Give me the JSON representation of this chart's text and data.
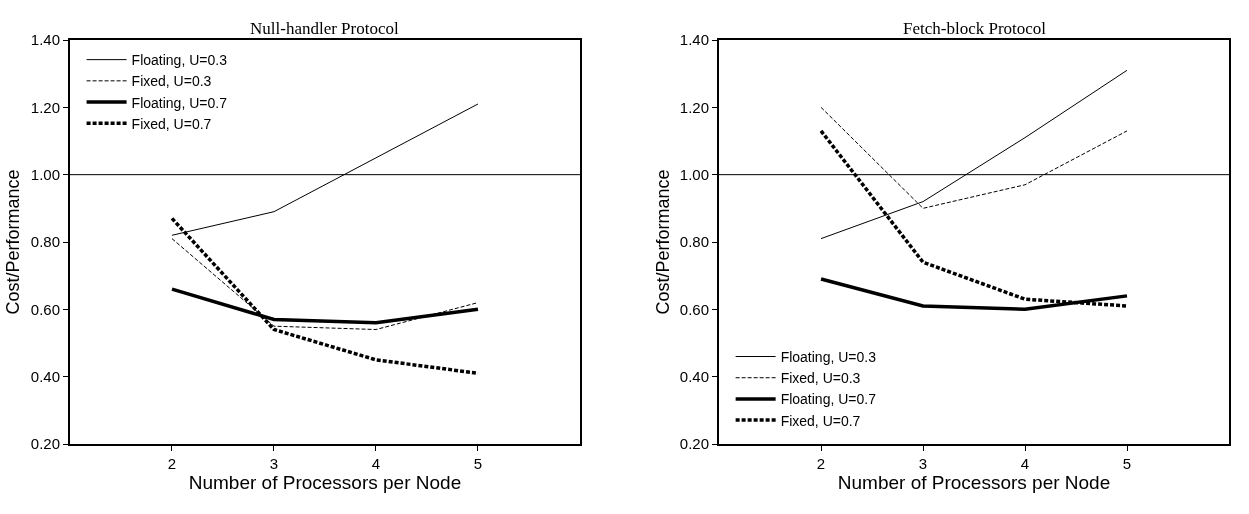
{
  "chart_data": [
    {
      "type": "line",
      "title": "Null-handler Protocol",
      "xlabel": "Number of Processors per Node",
      "ylabel": "Cost/Performance",
      "x": [
        2,
        3,
        4,
        5
      ],
      "xlim": [
        1,
        6
      ],
      "xticks": [
        2,
        3,
        4,
        5
      ],
      "ylim": [
        0.2,
        1.4
      ],
      "yticks": [
        {
          "value": 0.2,
          "label": "0.20"
        },
        {
          "value": 0.4,
          "label": "0.40"
        },
        {
          "value": 0.6,
          "label": "0.60"
        },
        {
          "value": 0.8,
          "label": "0.80"
        },
        {
          "value": 1.0,
          "label": "1.00"
        },
        {
          "value": 1.2,
          "label": "1.20"
        },
        {
          "value": 1.4,
          "label": "1.40"
        }
      ],
      "legend": "top left",
      "marker": "none",
      "ref_lines": [
        {
          "axis": "y",
          "value": 1.0,
          "color": "#000000",
          "line_style": "solid"
        }
      ],
      "series": [
        {
          "name": "Floating, U=0.3",
          "color": "#000000",
          "line_style": "solid",
          "values": [
            0.82,
            0.89,
            1.05,
            1.21
          ]
        },
        {
          "name": "Fixed, U=0.3",
          "color": "#000000",
          "line_style": "dashed",
          "values": [
            0.81,
            0.55,
            0.54,
            0.62
          ]
        },
        {
          "name": "Floating, U=0.7",
          "color": "#000000",
          "line_style": "solid",
          "values": [
            0.66,
            0.57,
            0.56,
            0.6
          ]
        },
        {
          "name": "Fixed, U=0.7",
          "color": "#000000",
          "line_style": "dashed",
          "values": [
            0.87,
            0.54,
            0.45,
            0.41
          ]
        }
      ]
    },
    {
      "type": "line",
      "title": "Fetch-block Protocol",
      "xlabel": "Number of Processors per Node",
      "ylabel": "Cost/Performance",
      "x": [
        2,
        3,
        4,
        5
      ],
      "xlim": [
        1,
        6
      ],
      "xticks": [
        2,
        3,
        4,
        5
      ],
      "ylim": [
        0.2,
        1.4
      ],
      "yticks": [
        {
          "value": 0.2,
          "label": "0.20"
        },
        {
          "value": 0.4,
          "label": "0.40"
        },
        {
          "value": 0.6,
          "label": "0.60"
        },
        {
          "value": 0.8,
          "label": "0.80"
        },
        {
          "value": 1.0,
          "label": "1.00"
        },
        {
          "value": 1.2,
          "label": "1.20"
        },
        {
          "value": 1.4,
          "label": "1.40"
        }
      ],
      "legend": "bottom left",
      "marker": "none",
      "ref_lines": [
        {
          "axis": "y",
          "value": 1.0,
          "color": "#000000",
          "line_style": "solid"
        }
      ],
      "series": [
        {
          "name": "Floating, U=0.3",
          "color": "#000000",
          "line_style": "solid",
          "values": [
            0.81,
            0.92,
            1.11,
            1.31
          ]
        },
        {
          "name": "Fixed, U=0.3",
          "color": "#000000",
          "line_style": "dashed",
          "values": [
            1.2,
            0.9,
            0.97,
            1.13
          ]
        },
        {
          "name": "Floating, U=0.7",
          "color": "#000000",
          "line_style": "solid",
          "values": [
            0.69,
            0.61,
            0.6,
            0.64
          ]
        },
        {
          "name": "Fixed, U=0.7",
          "color": "#000000",
          "line_style": "dashed",
          "values": [
            1.13,
            0.74,
            0.63,
            0.61
          ]
        }
      ]
    }
  ]
}
